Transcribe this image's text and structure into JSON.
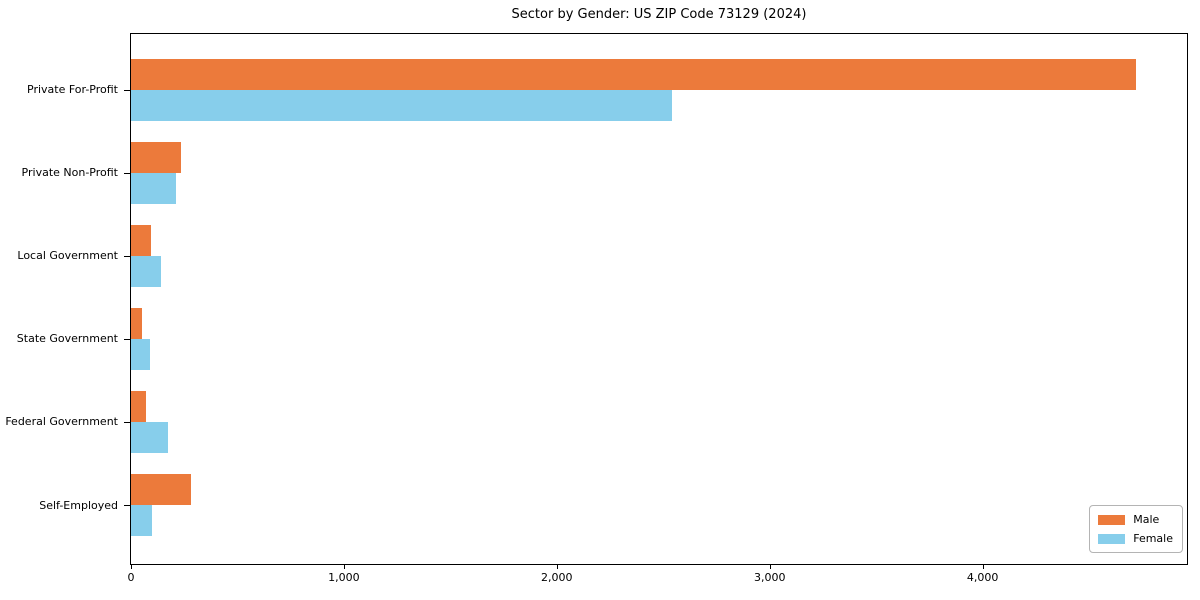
{
  "title": "Sector by Gender: US ZIP Code 73129 (2024)",
  "chart_data": {
    "type": "bar",
    "orientation": "horizontal",
    "title": "Sector by Gender: US ZIP Code 73129 (2024)",
    "categories": [
      "Private For-Profit",
      "Private Non-Profit",
      "Local Government",
      "State Government",
      "Federal Government",
      "Self-Employed"
    ],
    "series": [
      {
        "name": "Male",
        "color": "#ec7a3b",
        "values": [
          4720,
          235,
          95,
          50,
          70,
          280
        ]
      },
      {
        "name": "Female",
        "color": "#87ceeb",
        "values": [
          2540,
          210,
          140,
          90,
          175,
          100
        ]
      }
    ],
    "xlabel": "",
    "ylabel": "",
    "xlim": [
      0,
      4960
    ],
    "xticks": [
      0,
      1000,
      2000,
      3000,
      4000
    ],
    "xtick_labels": [
      "0",
      "1,000",
      "2,000",
      "3,000",
      "4,000"
    ],
    "grid": false,
    "legend_position": "lower right"
  },
  "legend": {
    "items": [
      {
        "label": "Male",
        "color": "#ec7a3b"
      },
      {
        "label": "Female",
        "color": "#87ceeb"
      }
    ]
  }
}
